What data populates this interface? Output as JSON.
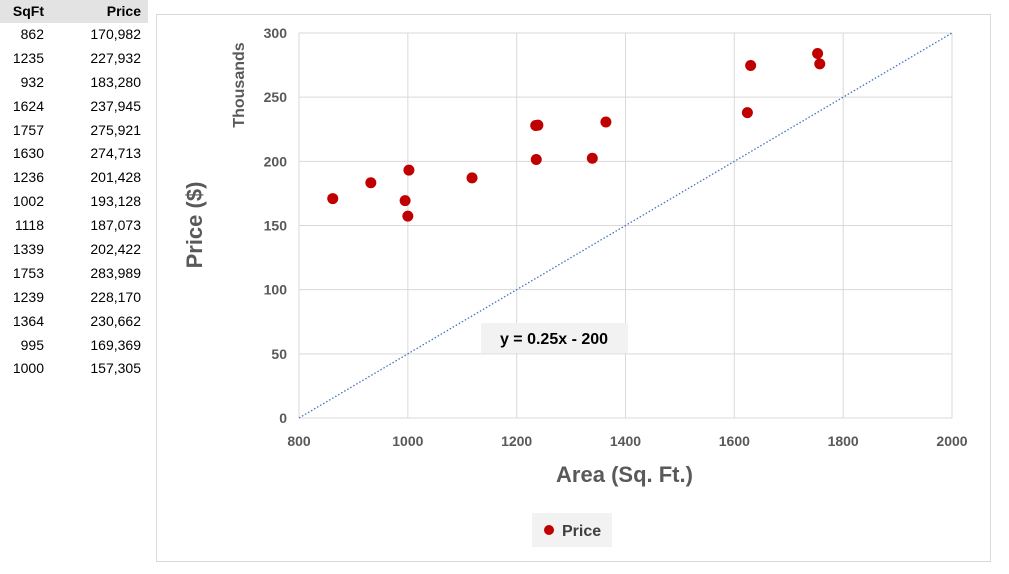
{
  "table": {
    "headers": [
      "SqFt",
      "Price"
    ],
    "rows": [
      [
        "862",
        "170,982"
      ],
      [
        "1235",
        "227,932"
      ],
      [
        "932",
        "183,280"
      ],
      [
        "1624",
        "237,945"
      ],
      [
        "1757",
        "275,921"
      ],
      [
        "1630",
        "274,713"
      ],
      [
        "1236",
        "201,428"
      ],
      [
        "1002",
        "193,128"
      ],
      [
        "1118",
        "187,073"
      ],
      [
        "1339",
        "202,422"
      ],
      [
        "1753",
        "283,989"
      ],
      [
        "1239",
        "228,170"
      ],
      [
        "1364",
        "230,662"
      ],
      [
        "995",
        "169,369"
      ],
      [
        "1000",
        "157,305"
      ]
    ]
  },
  "chart_data": {
    "type": "scatter",
    "title": "",
    "xlabel": "Area (Sq. Ft.)",
    "ylabel": "Price ($)",
    "y_unit_label": "Thousands",
    "xlim": [
      800,
      2000
    ],
    "ylim": [
      0,
      300
    ],
    "xticks": [
      800,
      1000,
      1200,
      1400,
      1600,
      1800,
      2000
    ],
    "yticks": [
      0,
      50,
      100,
      150,
      200,
      250,
      300
    ],
    "grid": true,
    "legend_position": "bottom",
    "series": [
      {
        "name": "Price",
        "color": "#c00000",
        "points": [
          [
            862,
            170.982
          ],
          [
            1235,
            227.932
          ],
          [
            932,
            183.28
          ],
          [
            1624,
            237.945
          ],
          [
            1757,
            275.921
          ],
          [
            1630,
            274.713
          ],
          [
            1236,
            201.428
          ],
          [
            1002,
            193.128
          ],
          [
            1118,
            187.073
          ],
          [
            1339,
            202.422
          ],
          [
            1753,
            283.989
          ],
          [
            1239,
            228.17
          ],
          [
            1364,
            230.662
          ],
          [
            995,
            169.369
          ],
          [
            1000,
            157.305
          ]
        ]
      }
    ],
    "trendline": {
      "label": "y = 0.25x - 200",
      "slope": 0.25,
      "intercept": -200,
      "color": "#4472c4",
      "style": "dotted"
    }
  }
}
